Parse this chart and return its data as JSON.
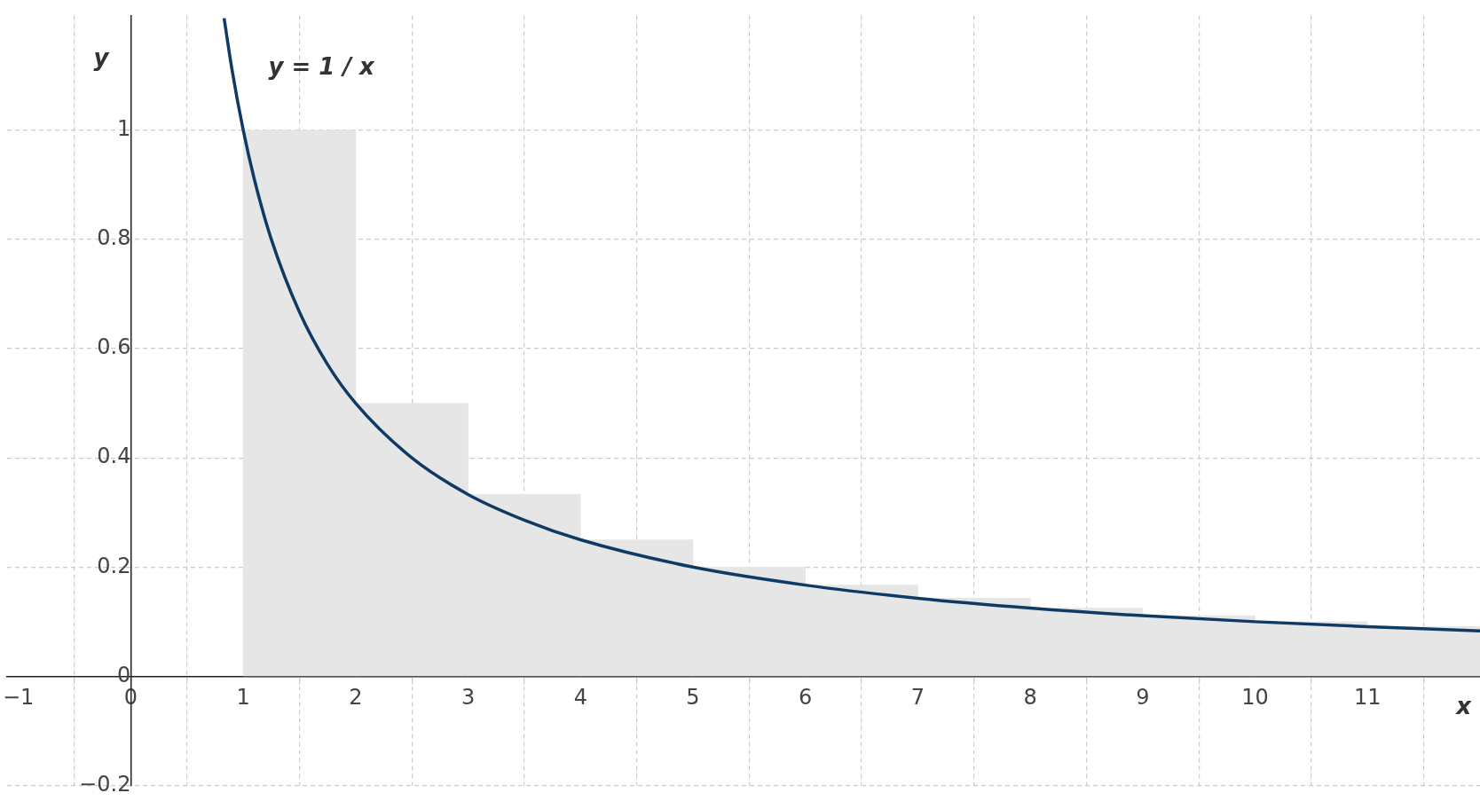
{
  "chart_data": {
    "type": "histogram",
    "xlabel": "x",
    "ylabel": "y",
    "bins": [
      1,
      2,
      3,
      4,
      5,
      6,
      7,
      8,
      9,
      10,
      11,
      12
    ],
    "values": [
      1,
      0.5,
      0.333,
      0.25,
      0.2,
      0.167,
      0.143,
      0.125,
      0.111,
      0.1,
      0.091
    ],
    "color": "#e6e6e6",
    "series": [
      {
        "type": "line",
        "color": "#0f3a64",
        "x": [
          0.83,
          0.9,
          1,
          1.1,
          1.25,
          1.5,
          1.75,
          2,
          2.5,
          3,
          3.5,
          4,
          5,
          6,
          7,
          8,
          9,
          10,
          11,
          12
        ],
        "values": [
          1.205,
          1.111,
          1,
          0.909,
          0.8,
          0.667,
          0.571,
          0.5,
          0.4,
          0.333,
          0.286,
          0.25,
          0.2,
          0.167,
          0.143,
          0.125,
          0.111,
          0.1,
          0.091,
          0.083
        ]
      }
    ],
    "annotations": [
      "y = 1 / x"
    ],
    "xlim": [
      -1.1,
      12
    ],
    "ylim": [
      -0.2,
      1.21
    ],
    "xticks": [
      -1,
      0,
      1,
      2,
      3,
      4,
      5,
      6,
      7,
      8,
      9,
      10,
      11
    ],
    "yticks": [
      -0.2,
      0,
      0.2,
      0.4,
      0.6,
      0.8,
      1
    ],
    "grid": true,
    "legend": false,
    "marker": "none",
    "line_style": "solid"
  }
}
